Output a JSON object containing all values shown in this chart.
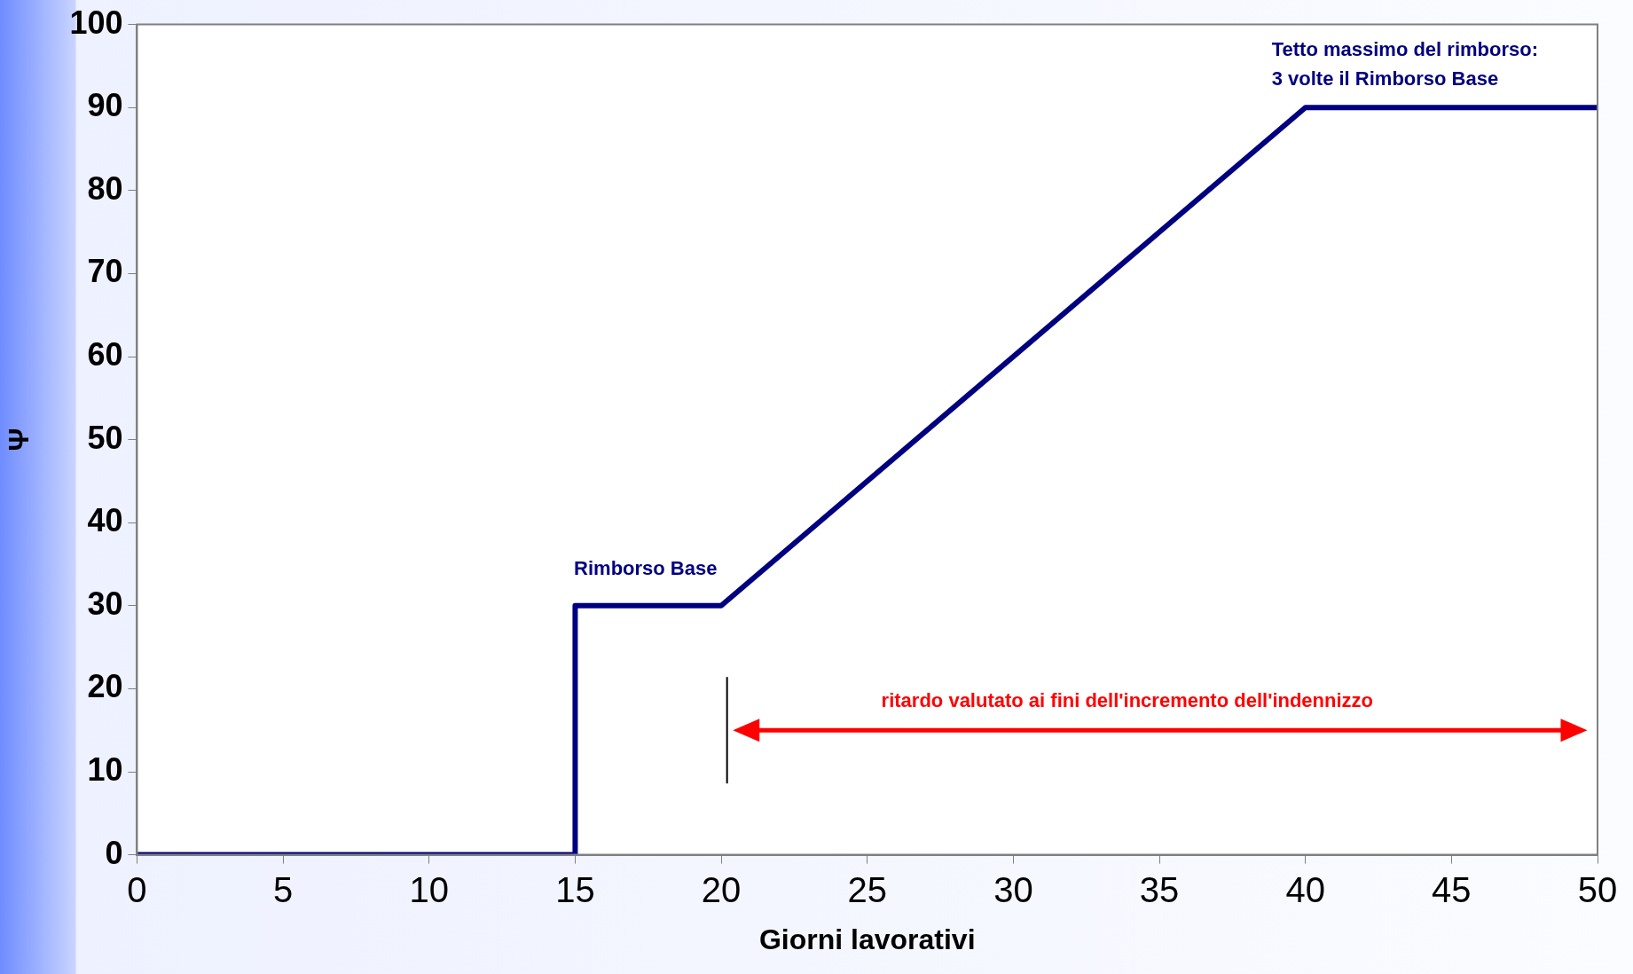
{
  "chart_data": {
    "type": "line",
    "xlabel": "Giorni lavorativi",
    "ylabel": "Ψ",
    "x": [
      0,
      15,
      15,
      20,
      40,
      50
    ],
    "series": [
      {
        "color": "#000080",
        "values": [
          0,
          0,
          30,
          30,
          90,
          90
        ]
      }
    ],
    "xlim": [
      0,
      50
    ],
    "xticks": [
      0,
      5,
      10,
      15,
      20,
      25,
      30,
      35,
      40,
      45,
      50
    ],
    "ylim": [
      0,
      100
    ],
    "yticks": [
      0,
      10,
      20,
      30,
      40,
      50,
      60,
      70,
      80,
      90,
      100
    ],
    "grid": false,
    "legend": false,
    "marker": "none",
    "line_style": "solid",
    "annotations": [
      {
        "text": "Rimborso Base",
        "x": 17.5,
        "y": 30
      },
      {
        "text": "Tetto massimo del rimborso:\n3 volte il Rimborso Base",
        "x": 40,
        "y": 90
      },
      "ritardo valutato ai fini dell'incremento dell'indennizzo"
    ]
  }
}
